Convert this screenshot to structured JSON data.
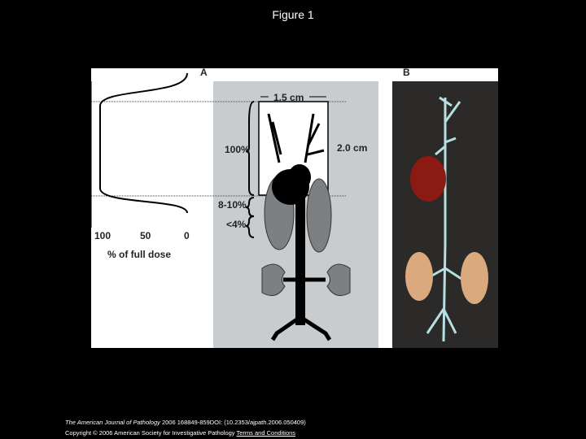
{
  "title": "Figure 1",
  "figure": {
    "panel_a": {
      "label": "A",
      "axis_ticks": [
        "100",
        "50",
        "0"
      ],
      "axis_label": "% of full dose",
      "width_label": "1.5 cm",
      "height_label": "2.0 cm",
      "dose_labels": [
        "100%",
        "8-10%",
        "<4%"
      ]
    },
    "panel_b": {
      "label": "B"
    }
  },
  "footer": {
    "journal": "The American Journal of Pathology",
    "citation": " 2006 168849-859DOI: (10.2353/ajpath.2006.050409) ",
    "copyright": "Copyright © 2006 American Society for Investigative Pathology",
    "link": "Terms and Conditions"
  }
}
